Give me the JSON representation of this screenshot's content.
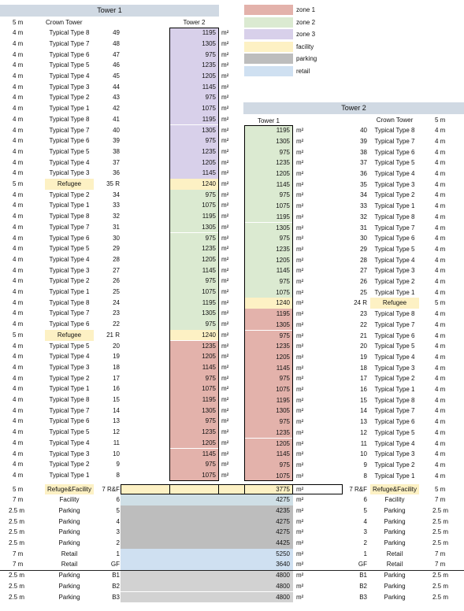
{
  "tower1_title": "Tower 1",
  "tower2_title": "Tower 2",
  "tower1_col_label": "Tower 1",
  "tower2_col_label": "Tower 2",
  "unit": "m²",
  "legend": [
    {
      "label": "zone 1",
      "color": "#e3b2ab"
    },
    {
      "label": "zone 2",
      "color": "#dbead1"
    },
    {
      "label": "zone 3",
      "color": "#d8d0ea"
    },
    {
      "label": "facility",
      "color": "#fdf1c4"
    },
    {
      "label": "parking",
      "color": "#bdbdbd"
    },
    {
      "label": "retail",
      "color": "#cfe0f1"
    }
  ],
  "tower1_rows": [
    {
      "h": "5 m",
      "name": "Crown Tower",
      "floor": "",
      "area": "",
      "zone": "none"
    },
    {
      "h": "4 m",
      "name": "Typical Type 8",
      "floor": "49",
      "area": "1195",
      "zone": "zone3"
    },
    {
      "h": "4 m",
      "name": "Typical Type 7",
      "floor": "48",
      "area": "1305",
      "zone": "zone3"
    },
    {
      "h": "4 m",
      "name": "Typical Type 6",
      "floor": "47",
      "area": "975",
      "zone": "zone3"
    },
    {
      "h": "4 m",
      "name": "Typical Type 5",
      "floor": "46",
      "area": "1235",
      "zone": "zone3"
    },
    {
      "h": "4 m",
      "name": "Typical Type 4",
      "floor": "45",
      "area": "1205",
      "zone": "zone3"
    },
    {
      "h": "4 m",
      "name": "Typical Type 3",
      "floor": "44",
      "area": "1145",
      "zone": "zone3"
    },
    {
      "h": "4 m",
      "name": "Typical Type 2",
      "floor": "43",
      "area": "975",
      "zone": "zone3"
    },
    {
      "h": "4 m",
      "name": "Typical Type 1",
      "floor": "42",
      "area": "1075",
      "zone": "zone3"
    },
    {
      "h": "4 m",
      "name": "Typical Type 8",
      "floor": "41",
      "area": "1195",
      "zone": "zone3"
    },
    {
      "h": "4 m",
      "name": "Typical Type 7",
      "floor": "40",
      "area": "1305",
      "zone": "zone3"
    },
    {
      "h": "4 m",
      "name": "Typical Type 6",
      "floor": "39",
      "area": "975",
      "zone": "zone3"
    },
    {
      "h": "4 m",
      "name": "Typical Type 5",
      "floor": "38",
      "area": "1235",
      "zone": "zone3"
    },
    {
      "h": "4 m",
      "name": "Typical Type 4",
      "floor": "37",
      "area": "1205",
      "zone": "zone3"
    },
    {
      "h": "4 m",
      "name": "Typical Type 3",
      "floor": "36",
      "area": "1145",
      "zone": "zone3"
    },
    {
      "h": "5 m",
      "name": "Refugee",
      "floor": "35 R",
      "area": "1240",
      "zone": "facility"
    },
    {
      "h": "4 m",
      "name": "Typical Type 2",
      "floor": "34",
      "area": "975",
      "zone": "zone2"
    },
    {
      "h": "4 m",
      "name": "Typical Type 1",
      "floor": "33",
      "area": "1075",
      "zone": "zone2"
    },
    {
      "h": "4 m",
      "name": "Typical Type 8",
      "floor": "32",
      "area": "1195",
      "zone": "zone2"
    },
    {
      "h": "4 m",
      "name": "Typical Type 7",
      "floor": "31",
      "area": "1305",
      "zone": "zone2"
    },
    {
      "h": "4 m",
      "name": "Typical Type 6",
      "floor": "30",
      "area": "975",
      "zone": "zone2"
    },
    {
      "h": "4 m",
      "name": "Typical Type 5",
      "floor": "29",
      "area": "1235",
      "zone": "zone2"
    },
    {
      "h": "4 m",
      "name": "Typical Type 4",
      "floor": "28",
      "area": "1205",
      "zone": "zone2"
    },
    {
      "h": "4 m",
      "name": "Typical Type 3",
      "floor": "27",
      "area": "1145",
      "zone": "zone2"
    },
    {
      "h": "4 m",
      "name": "Typical Type 2",
      "floor": "26",
      "area": "975",
      "zone": "zone2"
    },
    {
      "h": "4 m",
      "name": "Typical Type 1",
      "floor": "25",
      "area": "1075",
      "zone": "zone2"
    },
    {
      "h": "4 m",
      "name": "Typical Type 8",
      "floor": "24",
      "area": "1195",
      "zone": "zone2"
    },
    {
      "h": "4 m",
      "name": "Typical Type 7",
      "floor": "23",
      "area": "1305",
      "zone": "zone2"
    },
    {
      "h": "4 m",
      "name": "Typical Type 6",
      "floor": "22",
      "area": "975",
      "zone": "zone2"
    },
    {
      "h": "5 m",
      "name": "Refugee",
      "floor": "21 R",
      "area": "1240",
      "zone": "facility"
    },
    {
      "h": "4 m",
      "name": "Typical Type 5",
      "floor": "20",
      "area": "1235",
      "zone": "zone1"
    },
    {
      "h": "4 m",
      "name": "Typical Type 4",
      "floor": "19",
      "area": "1205",
      "zone": "zone1"
    },
    {
      "h": "4 m",
      "name": "Typical Type 3",
      "floor": "18",
      "area": "1145",
      "zone": "zone1"
    },
    {
      "h": "4 m",
      "name": "Typical Type 2",
      "floor": "17",
      "area": "975",
      "zone": "zone1"
    },
    {
      "h": "4 m",
      "name": "Typical Type 1",
      "floor": "16",
      "area": "1075",
      "zone": "zone1"
    },
    {
      "h": "4 m",
      "name": "Typical Type 8",
      "floor": "15",
      "area": "1195",
      "zone": "zone1"
    },
    {
      "h": "4 m",
      "name": "Typical Type 7",
      "floor": "14",
      "area": "1305",
      "zone": "zone1"
    },
    {
      "h": "4 m",
      "name": "Typical Type 6",
      "floor": "13",
      "area": "975",
      "zone": "zone1"
    },
    {
      "h": "4 m",
      "name": "Typical Type 5",
      "floor": "12",
      "area": "1235",
      "zone": "zone1"
    },
    {
      "h": "4 m",
      "name": "Typical Type 4",
      "floor": "11",
      "area": "1205",
      "zone": "zone1"
    },
    {
      "h": "4 m",
      "name": "Typical Type 3",
      "floor": "10",
      "area": "1145",
      "zone": "zone1"
    },
    {
      "h": "4 m",
      "name": "Typical Type 2",
      "floor": "9",
      "area": "975",
      "zone": "zone1"
    },
    {
      "h": "4 m",
      "name": "Typical Type 1",
      "floor": "8",
      "area": "1075",
      "zone": "zone1"
    }
  ],
  "tower2_rows": [
    {
      "h": "5 m",
      "name": "Crown Tower",
      "floor": "",
      "area": "",
      "zone": "none"
    },
    {
      "h": "4 m",
      "name": "Typical Type 8",
      "floor": "40",
      "area": "1195",
      "zone": "zone2"
    },
    {
      "h": "4 m",
      "name": "Typical Type 7",
      "floor": "39",
      "area": "1305",
      "zone": "zone2"
    },
    {
      "h": "4 m",
      "name": "Typical Type 6",
      "floor": "38",
      "area": "975",
      "zone": "zone2"
    },
    {
      "h": "4 m",
      "name": "Typical Type 5",
      "floor": "37",
      "area": "1235",
      "zone": "zone2"
    },
    {
      "h": "4 m",
      "name": "Typical Type 4",
      "floor": "36",
      "area": "1205",
      "zone": "zone2"
    },
    {
      "h": "4 m",
      "name": "Typical Type 3",
      "floor": "35",
      "area": "1145",
      "zone": "zone2"
    },
    {
      "h": "4 m",
      "name": "Typical Type 2",
      "floor": "34",
      "area": "975",
      "zone": "zone2"
    },
    {
      "h": "4 m",
      "name": "Typical Type 1",
      "floor": "33",
      "area": "1075",
      "zone": "zone2"
    },
    {
      "h": "4 m",
      "name": "Typical Type 8",
      "floor": "32",
      "area": "1195",
      "zone": "zone2"
    },
    {
      "h": "4 m",
      "name": "Typical Type 7",
      "floor": "31",
      "area": "1305",
      "zone": "zone2"
    },
    {
      "h": "4 m",
      "name": "Typical Type 6",
      "floor": "30",
      "area": "975",
      "zone": "zone2"
    },
    {
      "h": "4 m",
      "name": "Typical Type 5",
      "floor": "29",
      "area": "1235",
      "zone": "zone2"
    },
    {
      "h": "4 m",
      "name": "Typical Type 4",
      "floor": "28",
      "area": "1205",
      "zone": "zone2"
    },
    {
      "h": "4 m",
      "name": "Typical Type 3",
      "floor": "27",
      "area": "1145",
      "zone": "zone2"
    },
    {
      "h": "4 m",
      "name": "Typical Type 2",
      "floor": "26",
      "area": "975",
      "zone": "zone2"
    },
    {
      "h": "4 m",
      "name": "Typical Type 1",
      "floor": "25",
      "area": "1075",
      "zone": "zone2"
    },
    {
      "h": "5 m",
      "name": "Refugee",
      "floor": "24 R",
      "area": "1240",
      "zone": "facility"
    },
    {
      "h": "4 m",
      "name": "Typical Type 8",
      "floor": "23",
      "area": "1195",
      "zone": "zone1"
    },
    {
      "h": "4 m",
      "name": "Typical Type 7",
      "floor": "22",
      "area": "1305",
      "zone": "zone1"
    },
    {
      "h": "4 m",
      "name": "Typical Type 6",
      "floor": "21",
      "area": "975",
      "zone": "zone1"
    },
    {
      "h": "4 m",
      "name": "Typical Type 5",
      "floor": "20",
      "area": "1235",
      "zone": "zone1"
    },
    {
      "h": "4 m",
      "name": "Typical Type 4",
      "floor": "19",
      "area": "1205",
      "zone": "zone1"
    },
    {
      "h": "4 m",
      "name": "Typical Type 3",
      "floor": "18",
      "area": "1145",
      "zone": "zone1"
    },
    {
      "h": "4 m",
      "name": "Typical Type 2",
      "floor": "17",
      "area": "975",
      "zone": "zone1"
    },
    {
      "h": "4 m",
      "name": "Typical Type 1",
      "floor": "16",
      "area": "1075",
      "zone": "zone1"
    },
    {
      "h": "4 m",
      "name": "Typical Type 8",
      "floor": "15",
      "area": "1195",
      "zone": "zone1"
    },
    {
      "h": "4 m",
      "name": "Typical Type 7",
      "floor": "14",
      "area": "1305",
      "zone": "zone1"
    },
    {
      "h": "4 m",
      "name": "Typical Type 6",
      "floor": "13",
      "area": "975",
      "zone": "zone1"
    },
    {
      "h": "4 m",
      "name": "Typical Type 5",
      "floor": "12",
      "area": "1235",
      "zone": "zone1"
    },
    {
      "h": "4 m",
      "name": "Typical Type 4",
      "floor": "11",
      "area": "1205",
      "zone": "zone1"
    },
    {
      "h": "4 m",
      "name": "Typical Type 3",
      "floor": "10",
      "area": "1145",
      "zone": "zone1"
    },
    {
      "h": "4 m",
      "name": "Typical Type 2",
      "floor": "9",
      "area": "975",
      "zone": "zone1"
    },
    {
      "h": "4 m",
      "name": "Typical Type 1",
      "floor": "8",
      "area": "1075",
      "zone": "zone1"
    }
  ],
  "podium_rows": [
    {
      "lh": "5 m",
      "lname": "Refuge&Facility",
      "lfloor": "7 R&F",
      "area": "3775",
      "zone": "facility",
      "rfloor": "7 R&F",
      "rname": "Refuge&Facility",
      "rh": "5 m",
      "hl": true
    },
    {
      "lh": "7 m",
      "lname": "Facility",
      "lfloor": "6",
      "area": "4275",
      "zone": "facility2",
      "rfloor": "6",
      "rname": "Facility",
      "rh": "7 m",
      "hl": false
    },
    {
      "lh": "2.5 m",
      "lname": "Parking",
      "lfloor": "5",
      "area": "4235",
      "zone": "parking",
      "rfloor": "5",
      "rname": "Parking",
      "rh": "2.5 m",
      "hl": false
    },
    {
      "lh": "2.5 m",
      "lname": "Parking",
      "lfloor": "4",
      "area": "4275",
      "zone": "parking",
      "rfloor": "4",
      "rname": "Parking",
      "rh": "2.5 m",
      "hl": false
    },
    {
      "lh": "2.5 m",
      "lname": "Parking",
      "lfloor": "3",
      "area": "4275",
      "zone": "parking",
      "rfloor": "3",
      "rname": "Parking",
      "rh": "2.5 m",
      "hl": false
    },
    {
      "lh": "2.5 m",
      "lname": "Parking",
      "lfloor": "2",
      "area": "4425",
      "zone": "parking",
      "rfloor": "2",
      "rname": "Parking",
      "rh": "2.5 m",
      "hl": false
    },
    {
      "lh": "7 m",
      "lname": "Retail",
      "lfloor": "1",
      "area": "5250",
      "zone": "retail",
      "rfloor": "1",
      "rname": "Retail",
      "rh": "7 m",
      "hl": false
    },
    {
      "lh": "7 m",
      "lname": "Retail",
      "lfloor": "GF",
      "area": "3640",
      "zone": "retail",
      "rfloor": "GF",
      "rname": "Retail",
      "rh": "7 m",
      "hl": false
    },
    {
      "lh": "2.5 m",
      "lname": "Parking",
      "lfloor": "B1",
      "area": "4800",
      "zone": "parking2",
      "rfloor": "B1",
      "rname": "Parking",
      "rh": "2.5 m",
      "hl": false
    },
    {
      "lh": "2.5 m",
      "lname": "Parking",
      "lfloor": "B2",
      "area": "4800",
      "zone": "parking2",
      "rfloor": "B2",
      "rname": "Parking",
      "rh": "2.5 m",
      "hl": false
    },
    {
      "lh": "2.5 m",
      "lname": "Parking",
      "lfloor": "B3",
      "area": "4800",
      "zone": "parking2",
      "rfloor": "B3",
      "rname": "Parking",
      "rh": "2.5 m",
      "hl": false
    }
  ]
}
